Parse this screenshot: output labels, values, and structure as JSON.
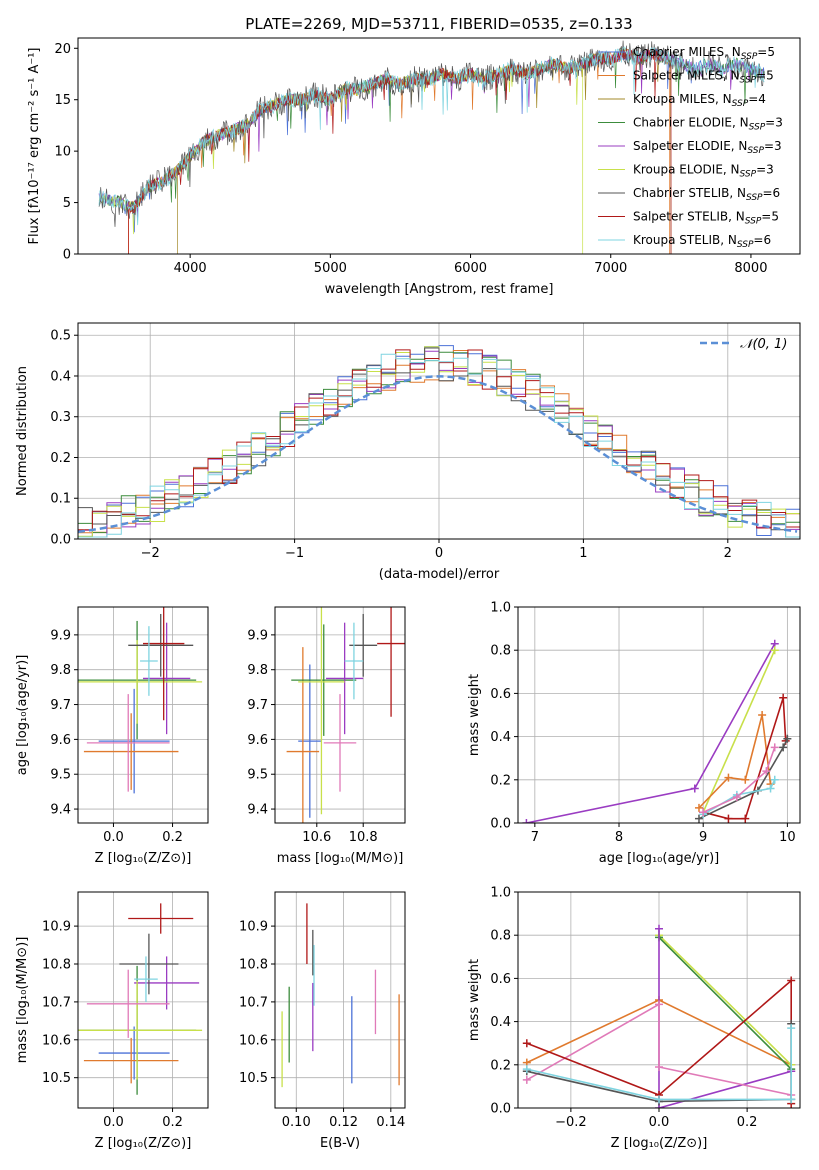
{
  "colors": {
    "chabrier_miles": "#4c72d8",
    "salpeter_miles": "#e07a2e",
    "kroupa_miles": "#a38a2a",
    "chabrier_elodie": "#3c8c3c",
    "salpeter_elodie": "#9a3cc2",
    "kroupa_elodie": "#c8e04a",
    "chabrier_stelib": "#555555",
    "salpeter_stelib": "#b01818",
    "kroupa_stelib": "#7fd4e0",
    "pink": "#e07ab8",
    "normal_curve": "#5b8fd6"
  },
  "chart_data": [
    {
      "id": "spectrum",
      "type": "line",
      "title": "PLATE=2269, MJD=53711, FIBERID=0535, z=0.133",
      "xlabel": "wavelength [Angstrom, rest frame]",
      "ylabel": "Flux [fλ10⁻¹⁷ erg cm⁻² s⁻¹ A⁻¹]",
      "xlim": [
        3200,
        8350
      ],
      "ylim": [
        0,
        21
      ],
      "xticks": [
        "4000",
        "5000",
        "6000",
        "7000",
        "8000"
      ],
      "yticks": [
        "0",
        "5",
        "10",
        "15",
        "20"
      ],
      "legend_position": "right",
      "series": [
        {
          "name": "Chabrier MILES, N",
          "sub": "SSP",
          "suffix": "=5",
          "color_key": "chabrier_miles"
        },
        {
          "name": "Salpeter MILES, N",
          "sub": "SSP",
          "suffix": "=5",
          "color_key": "salpeter_miles"
        },
        {
          "name": "Kroupa MILES, N",
          "sub": "SSP",
          "suffix": "=4",
          "color_key": "kroupa_miles"
        },
        {
          "name": "Chabrier ELODIE, N",
          "sub": "SSP",
          "suffix": "=3",
          "color_key": "chabrier_elodie"
        },
        {
          "name": "Salpeter ELODIE, N",
          "sub": "SSP",
          "suffix": "=3",
          "color_key": "salpeter_elodie"
        },
        {
          "name": "Kroupa ELODIE, N",
          "sub": "SSP",
          "suffix": "=3",
          "color_key": "kroupa_elodie"
        },
        {
          "name": "Chabrier STELIB, N",
          "sub": "SSP",
          "suffix": "=6",
          "color_key": "chabrier_stelib"
        },
        {
          "name": "Salpeter STELIB, N",
          "sub": "SSP",
          "suffix": "=5",
          "color_key": "salpeter_stelib"
        },
        {
          "name": "Kroupa STELIB, N",
          "sub": "SSP",
          "suffix": "=6",
          "color_key": "kroupa_stelib"
        }
      ],
      "envelope": [
        [
          3350,
          5.5
        ],
        [
          3500,
          5
        ],
        [
          3600,
          4.5
        ],
        [
          3700,
          6.5
        ],
        [
          3800,
          7
        ],
        [
          3900,
          8
        ],
        [
          4000,
          9.5
        ],
        [
          4100,
          11
        ],
        [
          4200,
          11.5
        ],
        [
          4300,
          12
        ],
        [
          4400,
          12.5
        ],
        [
          4500,
          14
        ],
        [
          4600,
          14.5
        ],
        [
          4700,
          15
        ],
        [
          4800,
          15
        ],
        [
          4900,
          15.5
        ],
        [
          5000,
          15
        ],
        [
          5100,
          16
        ],
        [
          5200,
          16
        ],
        [
          5300,
          16.5
        ],
        [
          5400,
          17
        ],
        [
          5500,
          16.5
        ],
        [
          5600,
          17
        ],
        [
          5700,
          17
        ],
        [
          5800,
          17.5
        ],
        [
          5900,
          17
        ],
        [
          6000,
          17.5
        ],
        [
          6100,
          17
        ],
        [
          6200,
          17.5
        ],
        [
          6300,
          18
        ],
        [
          6400,
          17.5
        ],
        [
          6500,
          18
        ],
        [
          6600,
          18.5
        ],
        [
          6700,
          18
        ],
        [
          6800,
          18.5
        ],
        [
          6900,
          19
        ],
        [
          7000,
          19
        ],
        [
          7100,
          19.5
        ],
        [
          7200,
          19
        ],
        [
          7300,
          19.5
        ],
        [
          7400,
          19
        ],
        [
          7500,
          18.5
        ],
        [
          7600,
          18
        ],
        [
          7700,
          18.5
        ],
        [
          7800,
          18
        ],
        [
          7900,
          18.5
        ],
        [
          8000,
          18
        ],
        [
          8100,
          17.5
        ]
      ]
    },
    {
      "id": "residuals",
      "type": "histogram",
      "xlabel": "(data-model)/error",
      "ylabel": "Normed distribution",
      "xlim": [
        -2.5,
        2.5
      ],
      "ylim": [
        0,
        0.53
      ],
      "xticks": [
        "−2",
        "−1",
        "0",
        "1",
        "2"
      ],
      "yticks": [
        "0.0",
        "0.1",
        "0.2",
        "0.3",
        "0.4",
        "0.5"
      ],
      "legend_position": "top-right",
      "legend_label": "𝒩(0, 1)",
      "bin_width": 0.1
    },
    {
      "id": "age-vs-Z",
      "type": "errorbar",
      "xlabel": "Z [log₁₀(Z/Z⊙)]",
      "ylabel": "age  [log₁₀(age/yr)]",
      "xlim": [
        -0.12,
        0.32
      ],
      "ylim": [
        9.36,
        9.98
      ],
      "xticks": [
        "0.0",
        "0.2"
      ],
      "yticks": [
        "9.4",
        "9.5",
        "9.6",
        "9.7",
        "9.8",
        "9.9"
      ],
      "points": [
        {
          "x": 0.07,
          "y": 9.595,
          "xe": 0.12,
          "ye": 0.15,
          "color_key": "chabrier_miles"
        },
        {
          "x": 0.06,
          "y": 9.565,
          "xe": 0.16,
          "ye": 0.11,
          "color_key": "salpeter_miles"
        },
        {
          "x": 0.08,
          "y": 9.77,
          "xe": 0.2,
          "ye": 0.17,
          "color_key": "chabrier_elodie"
        },
        {
          "x": 0.18,
          "y": 9.775,
          "xe": 0.08,
          "ye": 0.16,
          "color_key": "salpeter_elodie"
        },
        {
          "x": 0.08,
          "y": 9.765,
          "xe": 0.22,
          "ye": 0.12,
          "color_key": "kroupa_elodie"
        },
        {
          "x": 0.16,
          "y": 9.87,
          "xe": 0.11,
          "ye": 0.09,
          "color_key": "chabrier_stelib"
        },
        {
          "x": 0.17,
          "y": 9.875,
          "xe": 0.07,
          "ye": 0.22,
          "color_key": "salpeter_stelib"
        },
        {
          "x": 0.12,
          "y": 9.825,
          "xe": 0.03,
          "ye": 0.1,
          "color_key": "kroupa_stelib"
        },
        {
          "x": 0.05,
          "y": 9.59,
          "xe": 0.14,
          "ye": 0.14,
          "color_key": "pink"
        }
      ]
    },
    {
      "id": "age-vs-mass",
      "type": "errorbar",
      "xlabel": "mass [log₁₀(M/M⊙)]",
      "ylabel": "",
      "xlim": [
        10.42,
        10.98
      ],
      "ylim": [
        9.36,
        9.98
      ],
      "xticks": [
        "10.6",
        "10.8"
      ],
      "yticks": [
        "9.4",
        "9.5",
        "9.6",
        "9.7",
        "9.8",
        "9.9"
      ],
      "points": [
        {
          "x": 10.57,
          "y": 9.595,
          "xe": 0.05,
          "ye": 0.22,
          "color_key": "chabrier_miles"
        },
        {
          "x": 10.54,
          "y": 9.565,
          "xe": 0.07,
          "ye": 0.3,
          "color_key": "salpeter_miles"
        },
        {
          "x": 10.63,
          "y": 9.77,
          "xe": 0.14,
          "ye": 0.16,
          "color_key": "chabrier_elodie"
        },
        {
          "x": 10.72,
          "y": 9.775,
          "xe": 0.08,
          "ye": 0.16,
          "color_key": "salpeter_elodie"
        },
        {
          "x": 10.62,
          "y": 9.765,
          "xe": 0.1,
          "ye": 0.38,
          "color_key": "kroupa_elodie"
        },
        {
          "x": 10.8,
          "y": 9.87,
          "xe": 0.06,
          "ye": 0.09,
          "color_key": "chabrier_stelib"
        },
        {
          "x": 10.92,
          "y": 9.875,
          "xe": 0.06,
          "ye": 0.21,
          "color_key": "salpeter_stelib"
        },
        {
          "x": 10.76,
          "y": 9.825,
          "xe": 0.04,
          "ye": 0.11,
          "color_key": "kroupa_stelib"
        },
        {
          "x": 10.7,
          "y": 9.59,
          "xe": 0.07,
          "ye": 0.14,
          "color_key": "pink"
        }
      ]
    },
    {
      "id": "weight-vs-age",
      "type": "line",
      "xlabel": "age  [log₁₀(age/yr)]",
      "ylabel": "mass weight",
      "xlim": [
        6.8,
        10.15
      ],
      "ylim": [
        0,
        1
      ],
      "xticks": [
        "7",
        "8",
        "9",
        "10"
      ],
      "yticks": [
        "0.0",
        "0.2",
        "0.4",
        "0.6",
        "0.8",
        "1.0"
      ],
      "series": [
        {
          "color_key": "salpeter_elodie",
          "points": [
            [
              6.9,
              0
            ],
            [
              8.9,
              0.16
            ],
            [
              9.85,
              0.83
            ]
          ]
        },
        {
          "color_key": "kroupa_elodie",
          "points": [
            [
              9.0,
              0.05
            ],
            [
              9.85,
              0.8
            ]
          ]
        },
        {
          "color_key": "salpeter_miles",
          "points": [
            [
              8.95,
              0.07
            ],
            [
              9.3,
              0.21
            ],
            [
              9.5,
              0.2
            ],
            [
              9.7,
              0.5
            ],
            [
              9.8,
              0.18
            ]
          ]
        },
        {
          "color_key": "salpeter_stelib",
          "points": [
            [
              9.0,
              0.05
            ],
            [
              9.3,
              0.02
            ],
            [
              9.5,
              0.02
            ],
            [
              9.95,
              0.58
            ],
            [
              9.98,
              0.38
            ]
          ]
        },
        {
          "color_key": "chabrier_stelib",
          "points": [
            [
              8.95,
              0.02
            ],
            [
              9.65,
              0.15
            ],
            [
              9.95,
              0.35
            ],
            [
              10.0,
              0.39
            ]
          ]
        },
        {
          "color_key": "kroupa_stelib",
          "points": [
            [
              9.0,
              0.04
            ],
            [
              9.4,
              0.13
            ],
            [
              9.8,
              0.16
            ],
            [
              9.85,
              0.2
            ]
          ]
        },
        {
          "color_key": "pink",
          "points": [
            [
              9.0,
              0.05
            ],
            [
              9.4,
              0.12
            ],
            [
              9.75,
              0.24
            ],
            [
              9.85,
              0.35
            ]
          ]
        }
      ]
    },
    {
      "id": "mass-vs-Z",
      "type": "errorbar",
      "xlabel": "Z [log₁₀(Z/Z⊙)]",
      "ylabel": "mass [log₁₀(M/M⊙)]",
      "xlim": [
        -0.12,
        0.32
      ],
      "ylim": [
        10.42,
        10.99
      ],
      "xticks": [
        "0.0",
        "0.2"
      ],
      "yticks": [
        "10.5",
        "10.6",
        "10.7",
        "10.8",
        "10.9"
      ],
      "points": [
        {
          "x": 0.07,
          "y": 10.565,
          "xe": 0.12,
          "ye": 0.07,
          "color_key": "chabrier_miles"
        },
        {
          "x": 0.06,
          "y": 10.545,
          "xe": 0.16,
          "ye": 0.06,
          "color_key": "salpeter_miles"
        },
        {
          "x": 0.08,
          "y": 10.625,
          "xe": 0.2,
          "ye": 0.17,
          "color_key": "chabrier_elodie"
        },
        {
          "x": 0.18,
          "y": 10.75,
          "xe": 0.11,
          "ye": 0.07,
          "color_key": "salpeter_elodie"
        },
        {
          "x": 0.08,
          "y": 10.625,
          "xe": 0.22,
          "ye": 0.13,
          "color_key": "kroupa_elodie"
        },
        {
          "x": 0.12,
          "y": 10.8,
          "xe": 0.1,
          "ye": 0.08,
          "color_key": "chabrier_stelib"
        },
        {
          "x": 0.16,
          "y": 10.92,
          "xe": 0.11,
          "ye": 0.04,
          "color_key": "salpeter_stelib"
        },
        {
          "x": 0.11,
          "y": 10.76,
          "xe": 0.04,
          "ye": 0.06,
          "color_key": "kroupa_stelib"
        },
        {
          "x": 0.05,
          "y": 10.695,
          "xe": 0.14,
          "ye": 0.09,
          "color_key": "pink"
        }
      ]
    },
    {
      "id": "mass-vs-ebv",
      "type": "errorbar",
      "xlabel": "E(B-V)",
      "ylabel": "",
      "xlim": [
        0.091,
        0.146
      ],
      "ylim": [
        10.42,
        10.99
      ],
      "xticks": [
        "0.10",
        "0.12",
        "0.14"
      ],
      "yticks": [
        "10.5",
        "10.6",
        "10.7",
        "10.8",
        "10.9"
      ],
      "points": [
        {
          "x": 0.1235,
          "y": 10.6,
          "xe": 0,
          "ye": 0.115,
          "color_key": "chabrier_miles"
        },
        {
          "x": 0.1435,
          "y": 10.6,
          "xe": 0,
          "ye": 0.12,
          "color_key": "salpeter_miles"
        },
        {
          "x": 0.097,
          "y": 10.64,
          "xe": 0,
          "ye": 0.1,
          "color_key": "chabrier_elodie"
        },
        {
          "x": 0.107,
          "y": 10.66,
          "xe": 0,
          "ye": 0.09,
          "color_key": "salpeter_elodie"
        },
        {
          "x": 0.094,
          "y": 10.575,
          "xe": 0,
          "ye": 0.1,
          "color_key": "kroupa_elodie"
        },
        {
          "x": 0.107,
          "y": 10.83,
          "xe": 0,
          "ye": 0.06,
          "color_key": "chabrier_stelib"
        },
        {
          "x": 0.1045,
          "y": 10.88,
          "xe": 0,
          "ye": 0.08,
          "color_key": "salpeter_stelib"
        },
        {
          "x": 0.1075,
          "y": 10.77,
          "xe": 0,
          "ye": 0.08,
          "color_key": "kroupa_stelib"
        },
        {
          "x": 0.1335,
          "y": 10.7,
          "xe": 0,
          "ye": 0.085,
          "color_key": "pink"
        }
      ]
    },
    {
      "id": "weight-vs-Z",
      "type": "line",
      "xlabel": "Z [log₁₀(Z/Z⊙)]",
      "ylabel": "mass weight",
      "xlim": [
        -0.32,
        0.32
      ],
      "ylim": [
        0,
        1
      ],
      "xticks": [
        "−0.2",
        "0.0",
        "0.2"
      ],
      "yticks": [
        "0.0",
        "0.2",
        "0.4",
        "0.6",
        "0.8",
        "1.0"
      ],
      "series": [
        {
          "color_key": "salpeter_miles",
          "points": [
            [
              -0.3,
              0.21
            ],
            [
              0,
              0.5
            ],
            [
              0.3,
              0.2
            ]
          ]
        },
        {
          "color_key": "kroupa_elodie",
          "points": [
            [
              0,
              0.8
            ],
            [
              0.3,
              0.2
            ],
            [
              0.3,
              0.17
            ]
          ]
        },
        {
          "color_key": "chabrier_elodie",
          "points": [
            [
              0,
              0.79
            ],
            [
              0.3,
              0.18
            ]
          ]
        },
        {
          "color_key": "salpeter_elodie",
          "points": [
            [
              0,
              0.83
            ],
            [
              0,
              0
            ],
            [
              0.3,
              0.17
            ]
          ]
        },
        {
          "color_key": "pink",
          "points": [
            [
              -0.3,
              0.13
            ],
            [
              0,
              0.48
            ],
            [
              0,
              0.19
            ],
            [
              0.3,
              0.06
            ]
          ]
        },
        {
          "color_key": "salpeter_stelib",
          "points": [
            [
              -0.3,
              0.3
            ],
            [
              0,
              0.06
            ],
            [
              0.3,
              0.59
            ],
            [
              0.3,
              0.02
            ]
          ]
        },
        {
          "color_key": "chabrier_stelib",
          "points": [
            [
              -0.3,
              0.17
            ],
            [
              0,
              0.03
            ],
            [
              0.3,
              0.04
            ],
            [
              0.3,
              0.39
            ]
          ]
        },
        {
          "color_key": "kroupa_stelib",
          "points": [
            [
              -0.3,
              0.18
            ],
            [
              0,
              0.04
            ],
            [
              0.3,
              0.04
            ],
            [
              0.3,
              0.37
            ]
          ]
        }
      ]
    }
  ]
}
